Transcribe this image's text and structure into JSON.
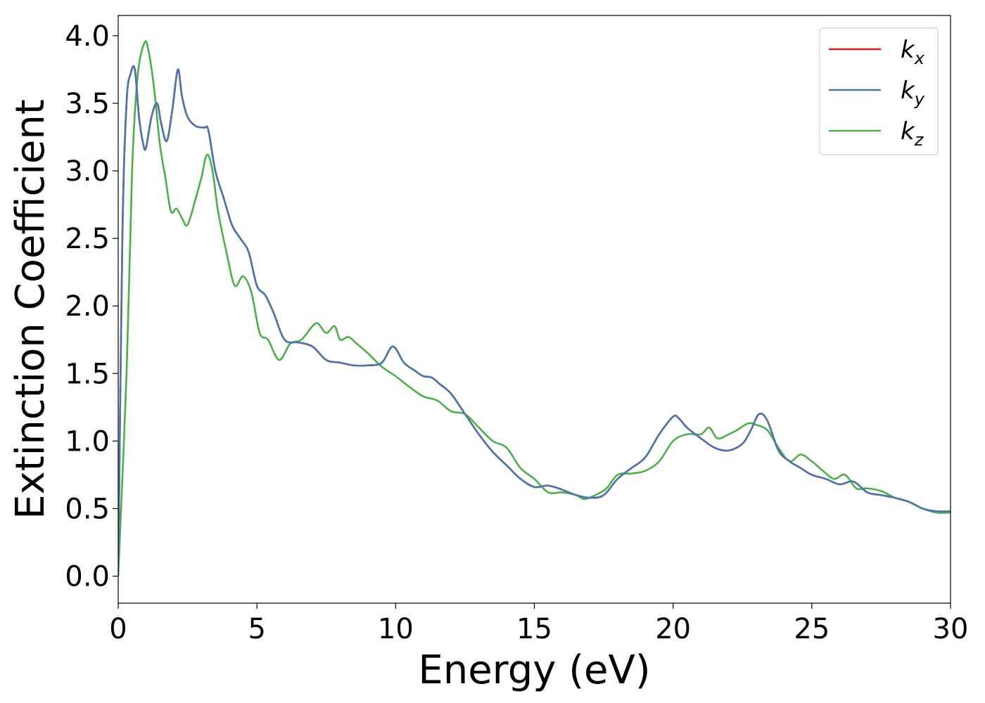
{
  "chart_data": {
    "type": "line",
    "xlabel": "Energy (eV)",
    "ylabel": "Extinction Coefficient",
    "xlim": [
      0,
      30
    ],
    "ylim": [
      -0.2,
      4.15
    ],
    "xticks": [
      0,
      5,
      10,
      15,
      20,
      25,
      30
    ],
    "xtick_labels": [
      "0",
      "5",
      "10",
      "15",
      "20",
      "25",
      "30"
    ],
    "yticks": [
      0.0,
      0.5,
      1.0,
      1.5,
      2.0,
      2.5,
      3.0,
      3.5,
      4.0
    ],
    "ytick_labels": [
      "0.0",
      "0.5",
      "1.0",
      "1.5",
      "2.0",
      "2.5",
      "3.0",
      "3.5",
      "4.0"
    ],
    "grid": false,
    "legend_position": "top-right",
    "series": [
      {
        "name": "k",
        "sub": "x",
        "color": "#e41a1c",
        "x": [
          0,
          0.15,
          0.3,
          0.45,
          0.6,
          0.75,
          0.9,
          1.0,
          1.2,
          1.4,
          1.55,
          1.75,
          1.95,
          2.15,
          2.3,
          2.5,
          2.8,
          3.1,
          3.25,
          3.5,
          3.8,
          4.1,
          4.4,
          4.7,
          5.0,
          5.3,
          5.6,
          6.0,
          6.5,
          7.0,
          7.5,
          8.0,
          8.5,
          9.0,
          9.5,
          9.9,
          10.3,
          10.7,
          11.0,
          11.3,
          11.6,
          12.0,
          12.5,
          13.0,
          13.5,
          14.0,
          14.5,
          15.0,
          15.5,
          16.0,
          16.5,
          17.0,
          17.5,
          18.0,
          18.5,
          19.0,
          19.5,
          20.0,
          20.2,
          20.5,
          21.0,
          21.5,
          22.0,
          22.5,
          22.8,
          23.1,
          23.4,
          23.8,
          24.2,
          24.6,
          25.0,
          25.5,
          26.0,
          26.5,
          27.0,
          27.5,
          28.0,
          28.5,
          29.0,
          29.5,
          30.0
        ],
        "y": [
          0.0,
          2.5,
          3.5,
          3.72,
          3.75,
          3.4,
          3.2,
          3.17,
          3.4,
          3.5,
          3.35,
          3.22,
          3.45,
          3.75,
          3.55,
          3.4,
          3.33,
          3.32,
          3.3,
          3.0,
          2.8,
          2.6,
          2.5,
          2.4,
          2.15,
          2.08,
          1.95,
          1.75,
          1.73,
          1.7,
          1.6,
          1.58,
          1.56,
          1.56,
          1.58,
          1.7,
          1.58,
          1.52,
          1.48,
          1.47,
          1.42,
          1.35,
          1.2,
          1.05,
          0.92,
          0.82,
          0.72,
          0.66,
          0.67,
          0.64,
          0.6,
          0.58,
          0.6,
          0.72,
          0.8,
          0.88,
          1.05,
          1.18,
          1.17,
          1.1,
          1.02,
          0.95,
          0.93,
          0.98,
          1.08,
          1.2,
          1.15,
          0.93,
          0.85,
          0.8,
          0.75,
          0.72,
          0.68,
          0.7,
          0.62,
          0.6,
          0.58,
          0.55,
          0.5,
          0.48,
          0.48
        ]
      },
      {
        "name": "k",
        "sub": "y",
        "color": "#4a76b0",
        "x": [
          0,
          0.15,
          0.3,
          0.45,
          0.6,
          0.75,
          0.9,
          1.0,
          1.2,
          1.4,
          1.55,
          1.75,
          1.95,
          2.15,
          2.3,
          2.5,
          2.8,
          3.1,
          3.25,
          3.5,
          3.8,
          4.1,
          4.4,
          4.7,
          5.0,
          5.3,
          5.6,
          6.0,
          6.5,
          7.0,
          7.5,
          8.0,
          8.5,
          9.0,
          9.5,
          9.9,
          10.3,
          10.7,
          11.0,
          11.3,
          11.6,
          12.0,
          12.5,
          13.0,
          13.5,
          14.0,
          14.5,
          15.0,
          15.5,
          16.0,
          16.5,
          17.0,
          17.5,
          18.0,
          18.5,
          19.0,
          19.5,
          20.0,
          20.2,
          20.5,
          21.0,
          21.5,
          22.0,
          22.5,
          22.8,
          23.1,
          23.4,
          23.8,
          24.2,
          24.6,
          25.0,
          25.5,
          26.0,
          26.5,
          27.0,
          27.5,
          28.0,
          28.5,
          29.0,
          29.5,
          30.0
        ],
        "y": [
          0.0,
          2.5,
          3.5,
          3.72,
          3.75,
          3.4,
          3.2,
          3.17,
          3.4,
          3.5,
          3.35,
          3.22,
          3.45,
          3.75,
          3.55,
          3.4,
          3.33,
          3.32,
          3.3,
          3.0,
          2.8,
          2.6,
          2.5,
          2.4,
          2.15,
          2.08,
          1.95,
          1.75,
          1.73,
          1.7,
          1.6,
          1.58,
          1.56,
          1.56,
          1.58,
          1.7,
          1.58,
          1.52,
          1.48,
          1.47,
          1.42,
          1.35,
          1.2,
          1.05,
          0.92,
          0.82,
          0.72,
          0.66,
          0.67,
          0.64,
          0.6,
          0.58,
          0.6,
          0.72,
          0.8,
          0.88,
          1.05,
          1.18,
          1.17,
          1.1,
          1.02,
          0.95,
          0.93,
          0.98,
          1.08,
          1.2,
          1.15,
          0.93,
          0.85,
          0.8,
          0.75,
          0.72,
          0.68,
          0.7,
          0.62,
          0.6,
          0.58,
          0.55,
          0.5,
          0.48,
          0.48
        ]
      },
      {
        "name": "k",
        "sub": "z",
        "color": "#4daf4a",
        "x": [
          0,
          0.3,
          0.5,
          0.7,
          0.95,
          1.1,
          1.3,
          1.5,
          1.7,
          1.9,
          2.1,
          2.3,
          2.5,
          2.8,
          3.0,
          3.2,
          3.4,
          3.6,
          3.9,
          4.2,
          4.5,
          4.8,
          5.1,
          5.4,
          5.8,
          6.2,
          6.6,
          7.0,
          7.2,
          7.5,
          7.8,
          8.0,
          8.3,
          8.6,
          9.0,
          9.5,
          10.0,
          10.5,
          11.0,
          11.5,
          12.0,
          12.5,
          13.0,
          13.5,
          14.0,
          14.5,
          15.0,
          15.5,
          16.0,
          16.5,
          16.8,
          17.2,
          17.6,
          18.0,
          18.5,
          19.0,
          19.5,
          20.0,
          20.5,
          21.0,
          21.3,
          21.6,
          22.0,
          22.3,
          22.7,
          23.0,
          23.4,
          23.8,
          24.2,
          24.6,
          25.0,
          25.4,
          25.8,
          26.2,
          26.6,
          27.0,
          27.5,
          28.0,
          28.5,
          29.0,
          29.5,
          30.0
        ],
        "y": [
          0.0,
          1.5,
          3.0,
          3.7,
          3.95,
          3.88,
          3.6,
          3.2,
          2.95,
          2.7,
          2.72,
          2.65,
          2.6,
          2.8,
          2.95,
          3.12,
          3.0,
          2.7,
          2.4,
          2.15,
          2.22,
          2.1,
          1.8,
          1.75,
          1.6,
          1.72,
          1.75,
          1.85,
          1.87,
          1.8,
          1.85,
          1.75,
          1.77,
          1.72,
          1.65,
          1.55,
          1.48,
          1.4,
          1.33,
          1.3,
          1.22,
          1.2,
          1.1,
          1.0,
          0.95,
          0.8,
          0.72,
          0.62,
          0.62,
          0.6,
          0.57,
          0.6,
          0.65,
          0.75,
          0.76,
          0.78,
          0.85,
          1.0,
          1.05,
          1.05,
          1.1,
          1.02,
          1.05,
          1.08,
          1.13,
          1.12,
          1.08,
          0.95,
          0.85,
          0.9,
          0.85,
          0.78,
          0.72,
          0.75,
          0.65,
          0.65,
          0.63,
          0.58,
          0.55,
          0.5,
          0.47,
          0.47
        ]
      }
    ]
  }
}
